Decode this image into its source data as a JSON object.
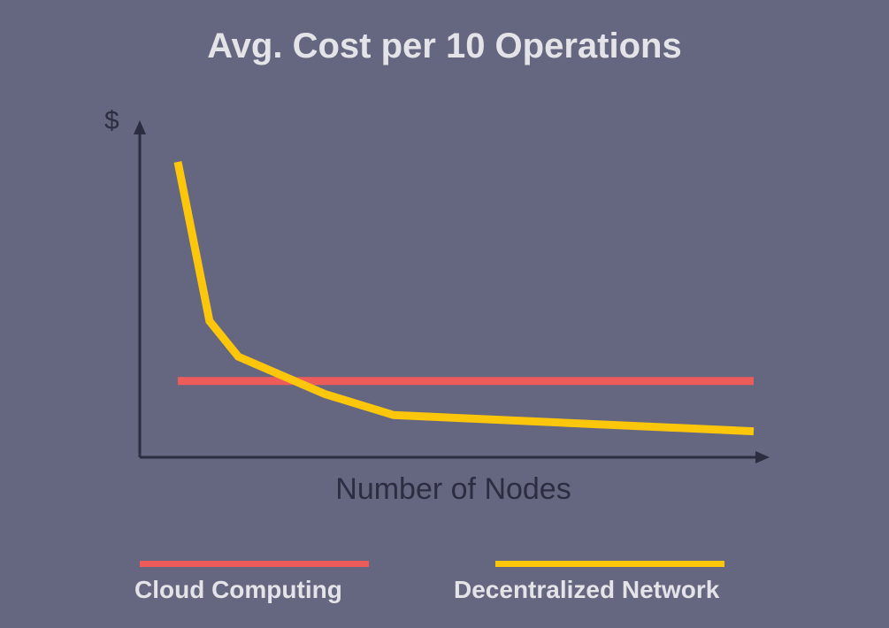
{
  "chart_data": {
    "type": "line",
    "title": "Avg. Cost per 10 Operations",
    "xlabel": "Number of Nodes",
    "ylabel": "$",
    "grid": false,
    "legend_position": "bottom",
    "xlim": [
      0,
      100
    ],
    "ylim": [
      0,
      100
    ],
    "series": [
      {
        "name": "Cloud Computing",
        "color": "#ee5b5b",
        "x": [
          0,
          100
        ],
        "y": [
          23.5,
          23.5
        ]
      },
      {
        "name": "Decentralized Network",
        "color": "#fcc60a",
        "x": [
          0,
          5.5,
          10.5,
          25.5,
          37.5,
          100
        ],
        "y": [
          91,
          42,
          31,
          19.5,
          13,
          8
        ]
      }
    ]
  },
  "colors": {
    "background": "#656680",
    "axis": "#2c2d40",
    "text_light": "#e3e3e8"
  }
}
